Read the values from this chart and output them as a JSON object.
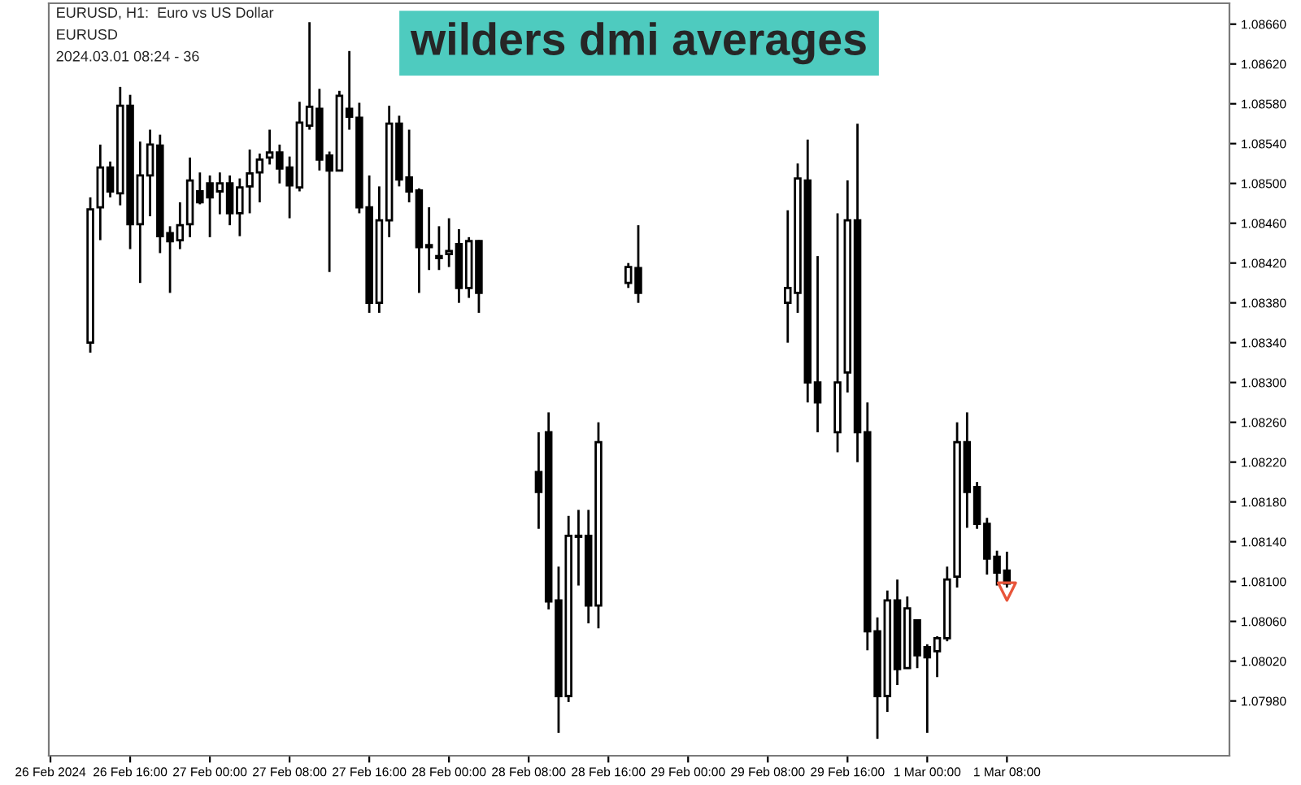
{
  "chart_data": {
    "type": "candlestick",
    "title": "wilders dmi averages",
    "annotations": [
      "EURUSD, H1:  Euro vs US Dollar",
      "EURUSD",
      "2024.03.01 08:24 - 36"
    ],
    "color": "#000000",
    "x": [
      "2024-02-26T12:00",
      "2024-02-26T13:00",
      "2024-02-26T14:00",
      "2024-02-26T15:00",
      "2024-02-26T16:00",
      "2024-02-26T17:00",
      "2024-02-26T18:00",
      "2024-02-26T19:00",
      "2024-02-26T20:00",
      "2024-02-26T21:00",
      "2024-02-26T22:00",
      "2024-02-26T23:00",
      "2024-02-27T00:00",
      "2024-02-27T01:00",
      "2024-02-27T02:00",
      "2024-02-27T03:00",
      "2024-02-27T04:00",
      "2024-02-27T05:00",
      "2024-02-27T06:00",
      "2024-02-27T07:00",
      "2024-02-27T08:00",
      "2024-02-27T09:00",
      "2024-02-27T10:00",
      "2024-02-27T11:00",
      "2024-02-27T12:00",
      "2024-02-27T13:00",
      "2024-02-27T14:00",
      "2024-02-27T15:00",
      "2024-02-27T16:00",
      "2024-02-27T17:00",
      "2024-02-27T18:00",
      "2024-02-27T19:00",
      "2024-02-27T20:00",
      "2024-02-27T21:00",
      "2024-02-27T22:00",
      "2024-02-27T23:00",
      "2024-02-28T00:00",
      "2024-02-28T01:00",
      "2024-02-28T02:00",
      "2024-02-28T03:00",
      "2024-02-28T09:00",
      "2024-02-28T10:00",
      "2024-02-28T11:00",
      "2024-02-28T12:00",
      "2024-02-28T13:00",
      "2024-02-28T14:00",
      "2024-02-28T15:00",
      "2024-02-28T18:00",
      "2024-02-28T19:00",
      "2024-02-29T10:00",
      "2024-02-29T11:00",
      "2024-02-29T12:00",
      "2024-02-29T13:00",
      "2024-02-29T15:00",
      "2024-02-29T16:00",
      "2024-02-29T17:00",
      "2024-02-29T18:00",
      "2024-02-29T19:00",
      "2024-02-29T20:00",
      "2024-02-29T21:00",
      "2024-02-29T22:00",
      "2024-02-29T23:00",
      "2024-03-01T00:00",
      "2024-03-01T01:00",
      "2024-03-01T02:00",
      "2024-03-01T03:00",
      "2024-03-01T04:00",
      "2024-03-01T05:00",
      "2024-03-01T06:00",
      "2024-03-01T07:00",
      "2024-03-01T08:00"
    ],
    "ohlc": [
      [
        1.0834,
        1.08486,
        1.0833,
        1.08474
      ],
      [
        1.08476,
        1.08539,
        1.08443,
        1.08516
      ],
      [
        1.08516,
        1.08522,
        1.08486,
        1.08492
      ],
      [
        1.0849,
        1.08597,
        1.08478,
        1.08578
      ],
      [
        1.08578,
        1.08589,
        1.08434,
        1.08459
      ],
      [
        1.08459,
        1.08542,
        1.084,
        1.08508
      ],
      [
        1.08508,
        1.08554,
        1.08467,
        1.08539
      ],
      [
        1.08538,
        1.08549,
        1.0843,
        1.08447
      ],
      [
        1.0845,
        1.08457,
        1.0839,
        1.08442
      ],
      [
        1.08443,
        1.08481,
        1.08434,
        1.08458
      ],
      [
        1.08459,
        1.08526,
        1.08446,
        1.08503
      ],
      [
        1.08492,
        1.08511,
        1.08479,
        1.08481
      ],
      [
        1.085,
        1.08508,
        1.08446,
        1.08486
      ],
      [
        1.08492,
        1.08511,
        1.08469,
        1.085
      ],
      [
        1.085,
        1.08508,
        1.08458,
        1.0847
      ],
      [
        1.0847,
        1.08505,
        1.08447,
        1.08496
      ],
      [
        1.08497,
        1.08534,
        1.0847,
        1.0851
      ],
      [
        1.08511,
        1.0853,
        1.08481,
        1.08524
      ],
      [
        1.08526,
        1.08554,
        1.08519,
        1.08531
      ],
      [
        1.08531,
        1.08539,
        1.085,
        1.08515
      ],
      [
        1.08516,
        1.08527,
        1.08465,
        1.08498
      ],
      [
        1.08496,
        1.08582,
        1.08492,
        1.08561
      ],
      [
        1.08558,
        1.08662,
        1.08554,
        1.08577
      ],
      [
        1.08575,
        1.08595,
        1.08513,
        1.08524
      ],
      [
        1.08528,
        1.08532,
        1.08411,
        1.08513
      ],
      [
        1.08513,
        1.08593,
        1.08512,
        1.08588
      ],
      [
        1.08575,
        1.08633,
        1.08554,
        1.08567
      ],
      [
        1.08566,
        1.08581,
        1.0847,
        1.08476
      ],
      [
        1.08476,
        1.08508,
        1.0837,
        1.0838
      ],
      [
        1.0838,
        1.08497,
        1.0837,
        1.08463
      ],
      [
        1.08463,
        1.08578,
        1.08446,
        1.0856
      ],
      [
        1.0856,
        1.08568,
        1.08497,
        1.08504
      ],
      [
        1.08506,
        1.08554,
        1.08481,
        1.08492
      ],
      [
        1.08493,
        1.08495,
        1.0839,
        1.08436
      ],
      [
        1.08438,
        1.08476,
        1.08413,
        1.08436
      ],
      [
        1.08427,
        1.08457,
        1.08413,
        1.08425
      ],
      [
        1.08429,
        1.08465,
        1.08416,
        1.08432
      ],
      [
        1.08439,
        1.08454,
        1.0838,
        1.08395
      ],
      [
        1.08395,
        1.08446,
        1.08385,
        1.08442
      ],
      [
        1.08442,
        1.08443,
        1.0837,
        1.0839
      ],
      [
        1.0821,
        1.0825,
        1.08153,
        1.0819
      ],
      [
        1.0825,
        1.0827,
        1.08072,
        1.0808
      ],
      [
        1.08081,
        1.08115,
        1.07948,
        1.07985
      ],
      [
        1.07985,
        1.08166,
        1.07979,
        1.08146
      ],
      [
        1.08146,
        1.08172,
        1.08096,
        1.08145
      ],
      [
        1.08146,
        1.08172,
        1.08058,
        1.08076
      ],
      [
        1.08076,
        1.0826,
        1.08053,
        1.0824
      ],
      [
        1.084,
        1.0842,
        1.08395,
        1.08416
      ],
      [
        1.08415,
        1.08458,
        1.0838,
        1.0839
      ],
      [
        1.0838,
        1.08473,
        1.0834,
        1.08395
      ],
      [
        1.0839,
        1.0852,
        1.0837,
        1.08505
      ],
      [
        1.08503,
        1.08544,
        1.0828,
        1.083
      ],
      [
        1.083,
        1.08427,
        1.0825,
        1.0828
      ],
      [
        1.0825,
        1.0847,
        1.0823,
        1.083
      ],
      [
        1.0831,
        1.08503,
        1.0829,
        1.08463
      ],
      [
        1.08463,
        1.0856,
        1.0822,
        1.0825
      ],
      [
        1.0825,
        1.0828,
        1.08031,
        1.0805
      ],
      [
        1.0805,
        1.08064,
        1.07942,
        1.07985
      ],
      [
        1.07985,
        1.08091,
        1.07969,
        1.08081
      ],
      [
        1.08081,
        1.08102,
        1.07996,
        1.08012
      ],
      [
        1.08013,
        1.08085,
        1.08013,
        1.08073
      ],
      [
        1.08061,
        1.08062,
        1.08013,
        1.08026
      ],
      [
        1.08034,
        1.08037,
        1.07948,
        1.08024
      ],
      [
        1.0803,
        1.08045,
        1.08004,
        1.08043
      ],
      [
        1.08043,
        1.08115,
        1.0804,
        1.08102
      ],
      [
        1.08105,
        1.0826,
        1.08094,
        1.0824
      ],
      [
        1.0824,
        1.0827,
        1.08154,
        1.0819
      ],
      [
        1.08195,
        1.082,
        1.08153,
        1.08158
      ],
      [
        1.08158,
        1.08164,
        1.08107,
        1.08123
      ],
      [
        1.08125,
        1.08131,
        1.08096,
        1.08109
      ],
      [
        1.08111,
        1.0813,
        1.08094,
        1.08098
      ]
    ],
    "series": [
      {
        "type": "scatter",
        "x": [
          "2024-03-01T08:00"
        ],
        "values": [
          1.0809
        ],
        "color": "#e8553a",
        "marker": "triangle"
      }
    ],
    "xlim": [
      "2024-02-26T07:50",
      "2024-03-02T06:20"
    ],
    "xticks": [
      {
        "value": "2024-02-26T08:00",
        "label": "26 Feb 2024"
      },
      {
        "value": "2024-02-26T16:00",
        "label": "26 Feb 16:00"
      },
      {
        "value": "2024-02-27T00:00",
        "label": "27 Feb 00:00"
      },
      {
        "value": "2024-02-27T08:00",
        "label": "27 Feb 08:00"
      },
      {
        "value": "2024-02-27T16:00",
        "label": "27 Feb 16:00"
      },
      {
        "value": "2024-02-28T00:00",
        "label": "28 Feb 00:00"
      },
      {
        "value": "2024-02-28T08:00",
        "label": "28 Feb 08:00"
      },
      {
        "value": "2024-02-28T16:00",
        "label": "28 Feb 16:00"
      },
      {
        "value": "2024-02-29T00:00",
        "label": "29 Feb 00:00"
      },
      {
        "value": "2024-02-29T08:00",
        "label": "29 Feb 08:00"
      },
      {
        "value": "2024-02-29T16:00",
        "label": "29 Feb 16:00"
      },
      {
        "value": "2024-03-01T00:00",
        "label": "1 Mar 00:00"
      },
      {
        "value": "2024-03-01T08:00",
        "label": "1 Mar 08:00"
      }
    ],
    "ylim": [
      1.07925,
      1.08681
    ],
    "yticks": [
      {
        "value": 1.0798,
        "label": "1.07980"
      },
      {
        "value": 1.0802,
        "label": "1.08020"
      },
      {
        "value": 1.0806,
        "label": "1.08060"
      },
      {
        "value": 1.081,
        "label": "1.08100"
      },
      {
        "value": 1.0814,
        "label": "1.08140"
      },
      {
        "value": 1.0818,
        "label": "1.08180"
      },
      {
        "value": 1.0822,
        "label": "1.08220"
      },
      {
        "value": 1.0826,
        "label": "1.08260"
      },
      {
        "value": 1.083,
        "label": "1.08300"
      },
      {
        "value": 1.0834,
        "label": "1.08340"
      },
      {
        "value": 1.0838,
        "label": "1.08380"
      },
      {
        "value": 1.0842,
        "label": "1.08420"
      },
      {
        "value": 1.0846,
        "label": "1.08460"
      },
      {
        "value": 1.085,
        "label": "1.08500"
      },
      {
        "value": 1.0854,
        "label": "1.08540"
      },
      {
        "value": 1.0858,
        "label": "1.08580"
      },
      {
        "value": 1.0862,
        "label": "1.08620"
      },
      {
        "value": 1.0866,
        "label": "1.08660"
      }
    ],
    "grid": false
  }
}
